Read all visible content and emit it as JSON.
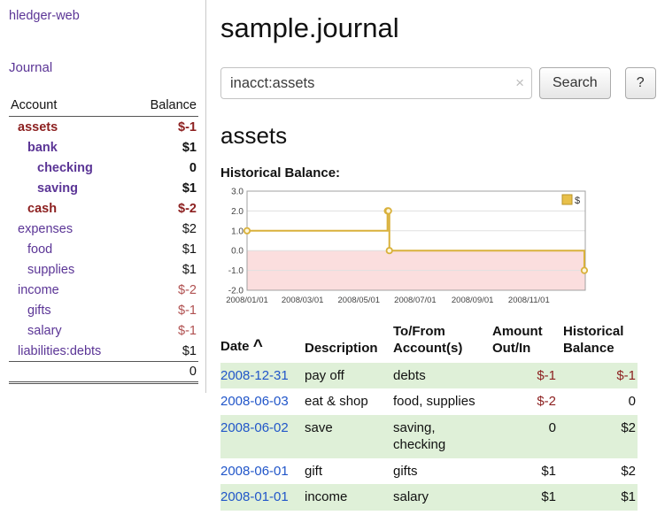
{
  "sidebar": {
    "app_title": "hledger-web",
    "nav": {
      "journal_label": "Journal"
    },
    "accounts_table": {
      "headers": {
        "account": "Account",
        "balance": "Balance"
      },
      "rows": [
        {
          "name": "assets",
          "indent": 0,
          "balance": "$-1",
          "bold": true,
          "negative": true
        },
        {
          "name": "bank",
          "indent": 1,
          "balance": "$1",
          "bold": true,
          "negative": false
        },
        {
          "name": "checking",
          "indent": 2,
          "balance": "0",
          "bold": true,
          "negative": false
        },
        {
          "name": "saving",
          "indent": 2,
          "balance": "$1",
          "bold": true,
          "negative": false
        },
        {
          "name": "cash",
          "indent": 1,
          "balance": "$-2",
          "bold": true,
          "negative": true
        },
        {
          "name": "expenses",
          "indent": 0,
          "balance": "$2",
          "bold": false,
          "negative": false
        },
        {
          "name": "food",
          "indent": 1,
          "balance": "$1",
          "bold": false,
          "negative": false
        },
        {
          "name": "supplies",
          "indent": 1,
          "balance": "$1",
          "bold": false,
          "negative": false
        },
        {
          "name": "income",
          "indent": 0,
          "balance": "$-2",
          "bold": false,
          "negative": true
        },
        {
          "name": "gifts",
          "indent": 1,
          "balance": "$-1",
          "bold": false,
          "negative": true
        },
        {
          "name": "salary",
          "indent": 1,
          "balance": "$-1",
          "bold": false,
          "negative": true
        },
        {
          "name": "liabilities:debts",
          "indent": 0,
          "balance": "$1",
          "bold": false,
          "negative": false
        }
      ],
      "total": "0"
    }
  },
  "main": {
    "title": "sample.journal",
    "account_heading": "assets"
  },
  "search": {
    "query": "inacct:assets",
    "clear_icon": "×",
    "button_label": "Search",
    "help_button_label": "?"
  },
  "chart_data": {
    "type": "line",
    "step": true,
    "title": "Historical Balance:",
    "ylim": [
      -2,
      3
    ],
    "yticks": [
      "3.0",
      "2.0",
      "1.0",
      "0.0",
      "-1.0",
      "-2.0"
    ],
    "xrange_days": [
      0,
      366
    ],
    "xticks": [
      {
        "label": "2008/01/01",
        "day": 0
      },
      {
        "label": "2008/03/01",
        "day": 60
      },
      {
        "label": "2008/05/01",
        "day": 121
      },
      {
        "label": "2008/07/01",
        "day": 182
      },
      {
        "label": "2008/09/01",
        "day": 244
      },
      {
        "label": "2008/11/01",
        "day": 305
      }
    ],
    "series": [
      {
        "name": "$",
        "points": [
          {
            "date": "2008-01-01",
            "day": 0,
            "value": 1
          },
          {
            "date": "2008-06-01",
            "day": 152,
            "value": 2
          },
          {
            "date": "2008-06-02",
            "day": 153,
            "value": 2
          },
          {
            "date": "2008-06-03",
            "day": 154,
            "value": 0
          },
          {
            "date": "2008-12-31",
            "day": 365,
            "value": -1
          }
        ]
      }
    ],
    "line_color": "#d9b13b",
    "negative_region_fill": "#fbdede",
    "legend": {
      "label": "$",
      "swatch_color": "#e8c04a"
    }
  },
  "register": {
    "headers": {
      "date": "Date",
      "sort_indicator": "^",
      "description": "Description",
      "account": "To/From Account(s)",
      "amount": "Amount Out/In",
      "balance": "Historical Balance"
    },
    "rows": [
      {
        "date": "2008-12-31",
        "description": "pay off",
        "accounts": "debts",
        "amount": "$-1",
        "amount_negative": true,
        "balance": "$-1",
        "balance_negative": true
      },
      {
        "date": "2008-06-03",
        "description": "eat & shop",
        "accounts": "food, supplies",
        "amount": "$-2",
        "amount_negative": true,
        "balance": "0",
        "balance_negative": false
      },
      {
        "date": "2008-06-02",
        "description": "save",
        "accounts": "saving, checking",
        "amount": "0",
        "amount_negative": false,
        "balance": "$2",
        "balance_negative": false
      },
      {
        "date": "2008-06-01",
        "description": "gift",
        "accounts": "gifts",
        "amount": "$1",
        "amount_negative": false,
        "balance": "$2",
        "balance_negative": false
      },
      {
        "date": "2008-01-01",
        "description": "income",
        "accounts": "salary",
        "amount": "$1",
        "amount_negative": false,
        "balance": "$1",
        "balance_negative": false
      }
    ]
  },
  "colors": {
    "accent_purple": "#5b3596",
    "link_blue": "#2156c9",
    "negative_red": "#8c1f1f",
    "negative_soft_red": "#b05050",
    "row_stripe_green": "#dff0d8",
    "chart_line_gold": "#d9b13b",
    "chart_negative_region_pink": "#fbdede"
  }
}
